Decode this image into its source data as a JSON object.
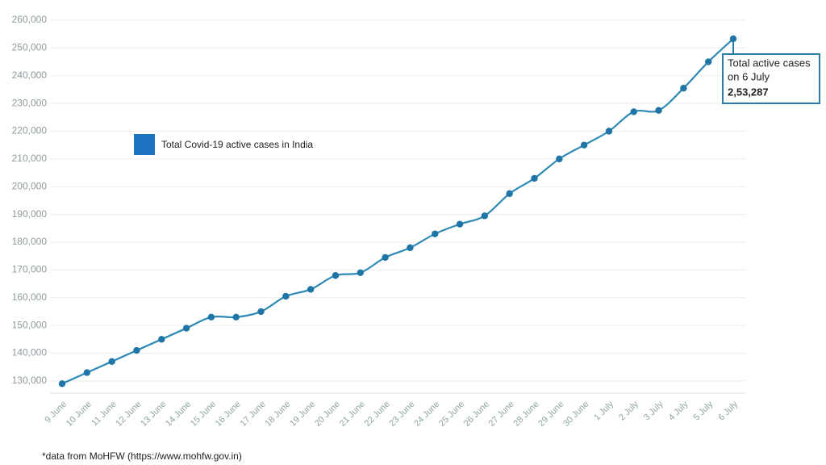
{
  "chart_data": {
    "type": "line",
    "categories": [
      "9 June",
      "10 June",
      "11 June",
      "12 June",
      "13 June",
      "14 June",
      "15 June",
      "16 June",
      "17 June",
      "18 June",
      "19 June",
      "20 June",
      "21 June",
      "22 June",
      "23 June",
      "24 June",
      "25 June",
      "26 June",
      "27 June",
      "28 June",
      "29 June",
      "30 June",
      "1 July",
      "2 July",
      "3 July",
      "4 July",
      "5 July",
      "6 July"
    ],
    "series": [
      {
        "name": "Total Covid-19 active cases in India",
        "color": "#2f8ab4",
        "values": [
          129000,
          133000,
          137000,
          141000,
          145000,
          149000,
          153000,
          153000,
          155000,
          160500,
          163000,
          168000,
          169000,
          174500,
          178000,
          183000,
          186500,
          189500,
          197500,
          203000,
          210000,
          215000,
          220000,
          227000,
          227500,
          235500,
          245000,
          253287
        ],
        "value_labels": [
          null,
          null,
          null,
          null,
          null,
          null,
          null,
          null,
          null,
          null,
          null,
          null,
          null,
          null,
          null,
          null,
          null,
          null,
          null,
          null,
          null,
          null,
          null,
          null,
          null,
          null,
          null,
          "2,53,287"
        ]
      }
    ],
    "ylim": [
      125600,
      260000
    ],
    "yticks": [
      {
        "value": 130000,
        "label": "130,000"
      },
      {
        "value": 140000,
        "label": "140,000"
      },
      {
        "value": 150000,
        "label": "150,000"
      },
      {
        "value": 160000,
        "label": "160,000"
      },
      {
        "value": 170000,
        "label": "170,000"
      },
      {
        "value": 180000,
        "label": "180,000"
      },
      {
        "value": 190000,
        "label": "190,000"
      },
      {
        "value": 200000,
        "label": "200,000"
      },
      {
        "value": 210000,
        "label": "210,000"
      },
      {
        "value": 220000,
        "label": "220,000"
      },
      {
        "value": 230000,
        "label": "230,000"
      },
      {
        "value": 240000,
        "label": "240,000"
      },
      {
        "value": 250000,
        "label": "250,000"
      },
      {
        "value": 260000,
        "label": "260,000"
      }
    ],
    "grid": true,
    "legend_color": "#1f74c2",
    "annotation": [
      "Total active cases",
      "on 6 July"
    ],
    "footnote": "*data from MoHFW (https://www.mohfw.gov.in)"
  }
}
